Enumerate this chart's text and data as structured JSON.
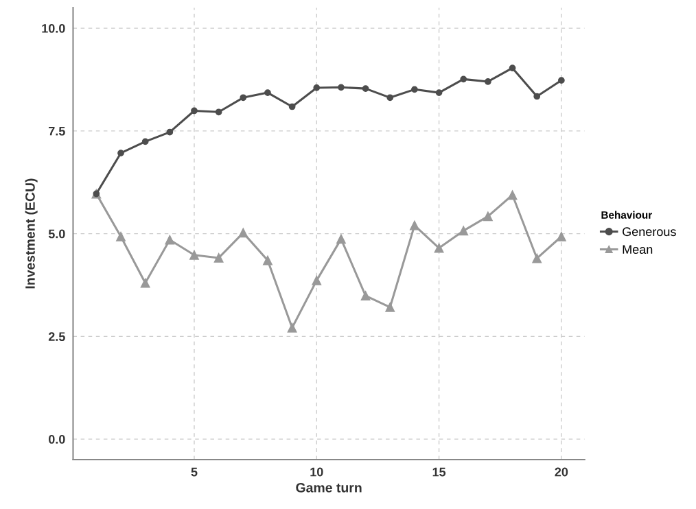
{
  "chart_data": {
    "type": "line",
    "xlabel": "Game turn",
    "ylabel": "Investment (ECU)",
    "legend_title": "Behaviour",
    "x": [
      1,
      2,
      3,
      4,
      5,
      6,
      7,
      8,
      9,
      10,
      11,
      12,
      13,
      14,
      15,
      16,
      17,
      18,
      19,
      20
    ],
    "series": [
      {
        "name": "Generous",
        "color": "#4d4d4d",
        "marker": "circle",
        "values": [
          5.97,
          6.96,
          7.24,
          7.47,
          7.99,
          7.96,
          8.31,
          8.43,
          8.09,
          8.55,
          8.56,
          8.53,
          8.31,
          8.51,
          8.43,
          8.76,
          8.7,
          9.03,
          8.34,
          8.73
        ]
      },
      {
        "name": "Mean",
        "color": "#999999",
        "marker": "triangle",
        "values": [
          5.97,
          4.93,
          3.8,
          4.85,
          4.48,
          4.41,
          5.02,
          4.35,
          2.71,
          3.86,
          4.87,
          3.49,
          3.21,
          5.2,
          4.65,
          5.07,
          5.42,
          5.94,
          4.4,
          4.93
        ]
      }
    ],
    "xlim": [
      0.05,
      20.95
    ],
    "xticks": [
      5,
      10,
      15,
      20
    ],
    "ylim": [
      -0.5,
      10.5
    ],
    "yticks": [
      {
        "value": 0,
        "label": "0.0"
      },
      {
        "value": 2.5,
        "label": "2.5"
      },
      {
        "value": 5,
        "label": "5.0"
      },
      {
        "value": 7.5,
        "label": "7.5"
      },
      {
        "value": 10,
        "label": "10.0"
      }
    ],
    "grid": true,
    "legend": "right",
    "line_style": "solid"
  }
}
